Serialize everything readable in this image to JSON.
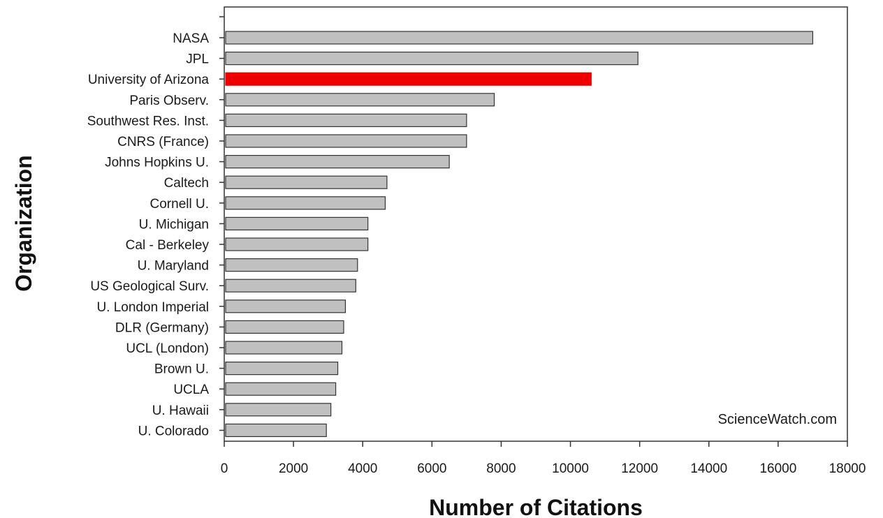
{
  "chart_data": {
    "type": "bar",
    "orientation": "horizontal",
    "xlabel": "Number of Citations",
    "ylabel": "Organization",
    "xlim": [
      0,
      18000
    ],
    "x_ticks": [
      "0",
      "2000",
      "4000",
      "6000",
      "8000",
      "10000",
      "12000",
      "14000",
      "16000",
      "18000"
    ],
    "categories": [
      "NASA",
      "JPL",
      "University of Arizona",
      "Paris Observ.",
      "Southwest Res. Inst.",
      "CNRS (France)",
      "Johns Hopkins U.",
      "Caltech",
      "Cornell U.",
      "U. Michigan",
      "Cal - Berkeley",
      "U. Maryland",
      "US Geological Surv.",
      "U. London Imperial",
      "DLR (Germany)",
      "UCL (London)",
      "Brown U.",
      "UCLA",
      "U. Hawaii",
      "U. Colorado"
    ],
    "values": [
      17000,
      11950,
      10600,
      7800,
      7000,
      7000,
      6500,
      4700,
      4650,
      4150,
      4150,
      3850,
      3800,
      3500,
      3450,
      3400,
      3280,
      3220,
      3080,
      2950
    ],
    "highlight_index": 2,
    "colors": {
      "bar": "#c0c0c0",
      "highlight": "#ee0000",
      "edge": "#333333"
    },
    "grid": false,
    "annotation": "ScienceWatch.com"
  }
}
